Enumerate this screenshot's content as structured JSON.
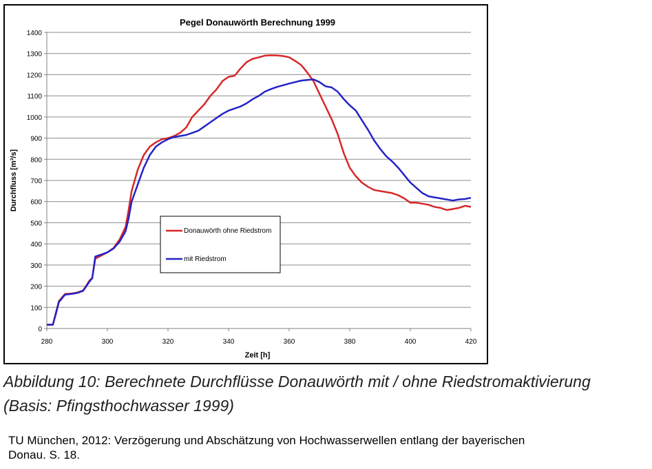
{
  "chart_data": {
    "type": "line",
    "title": "Pegel Donauwörth Berechnung 1999",
    "xlabel": "Zeit [h]",
    "ylabel": "Durchfluss [m³/s]",
    "xlim": [
      280,
      420
    ],
    "ylim": [
      0,
      1400
    ],
    "x_ticks": [
      280,
      300,
      320,
      340,
      360,
      380,
      400,
      420
    ],
    "y_ticks": [
      0,
      100,
      200,
      300,
      400,
      500,
      600,
      700,
      800,
      900,
      1000,
      1100,
      1200,
      1300,
      1400
    ],
    "grid": "horizontal",
    "legend_placement": "center-left",
    "series": [
      {
        "name": "Donauwörth  ohne Riedstrom",
        "color": "#d62728",
        "x": [
          280,
          282,
          283,
          284,
          286,
          288,
          290,
          292,
          294,
          295,
          296,
          298,
          300,
          302,
          304,
          306,
          307,
          308,
          310,
          312,
          314,
          316,
          318,
          320,
          322,
          324,
          326,
          328,
          330,
          332,
          334,
          336,
          338,
          340,
          342,
          344,
          346,
          348,
          350,
          352,
          354,
          356,
          358,
          360,
          362,
          364,
          366,
          368,
          370,
          372,
          374,
          376,
          378,
          380,
          382,
          384,
          386,
          388,
          390,
          392,
          394,
          396,
          398,
          400,
          402,
          404,
          406,
          408,
          410,
          412,
          414,
          416,
          418,
          420
        ],
        "y": [
          18,
          18,
          75,
          130,
          163,
          165,
          170,
          180,
          225,
          240,
          330,
          345,
          360,
          380,
          420,
          480,
          560,
          650,
          750,
          820,
          860,
          880,
          895,
          900,
          910,
          925,
          950,
          1000,
          1030,
          1060,
          1100,
          1130,
          1170,
          1190,
          1195,
          1230,
          1260,
          1275,
          1282,
          1290,
          1292,
          1291,
          1288,
          1282,
          1265,
          1245,
          1210,
          1170,
          1110,
          1050,
          990,
          920,
          830,
          760,
          720,
          690,
          670,
          655,
          650,
          645,
          640,
          630,
          615,
          595,
          595,
          590,
          585,
          575,
          570,
          560,
          565,
          570,
          580,
          575
        ]
      },
      {
        "name": "mit Riedstrom",
        "color": "#2323c8",
        "x": [
          280,
          282,
          283,
          284,
          286,
          288,
          290,
          292,
          294,
          295,
          296,
          298,
          300,
          302,
          304,
          306,
          307,
          308,
          310,
          312,
          314,
          316,
          318,
          320,
          322,
          324,
          326,
          328,
          330,
          332,
          334,
          336,
          338,
          340,
          342,
          344,
          346,
          348,
          350,
          352,
          354,
          356,
          358,
          360,
          362,
          364,
          366,
          368,
          370,
          372,
          374,
          376,
          378,
          380,
          382,
          384,
          386,
          388,
          390,
          392,
          394,
          396,
          398,
          400,
          402,
          404,
          406,
          408,
          410,
          412,
          414,
          416,
          418,
          420
        ],
        "y": [
          18,
          18,
          70,
          125,
          160,
          163,
          168,
          178,
          220,
          238,
          340,
          350,
          360,
          378,
          410,
          460,
          520,
          600,
          680,
          760,
          820,
          860,
          880,
          895,
          905,
          910,
          915,
          925,
          935,
          955,
          975,
          995,
          1015,
          1030,
          1040,
          1050,
          1065,
          1085,
          1100,
          1120,
          1132,
          1142,
          1150,
          1158,
          1165,
          1172,
          1175,
          1178,
          1165,
          1145,
          1140,
          1120,
          1085,
          1055,
          1030,
          985,
          940,
          890,
          850,
          815,
          790,
          760,
          725,
          690,
          665,
          640,
          625,
          620,
          615,
          610,
          605,
          610,
          612,
          618
        ]
      }
    ]
  },
  "caption": {
    "line1": "Abbildung 10: Berechnete Durchflüsse Donauwörth mit / ohne Riedstromaktivierung",
    "line2": "(Basis: Pfingsthochwasser 1999)"
  },
  "source": {
    "line1": "TU München, 2012: Verzögerung und Abschätzung von Hochwasserwellen entlang der bayerischen",
    "line2": "Donau. S. 18."
  }
}
